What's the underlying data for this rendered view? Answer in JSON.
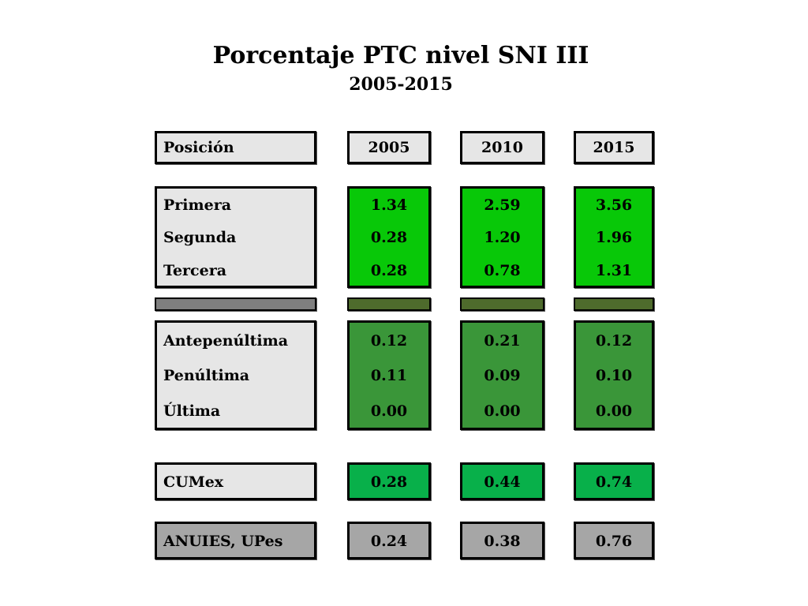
{
  "title": "Porcentaje PTC nivel SNI III",
  "subtitle": "2005-2015",
  "header": {
    "label": "Posición",
    "years": [
      "2005",
      "2010",
      "2015"
    ]
  },
  "chart_data": {
    "type": "table",
    "title": "Porcentaje PTC nivel SNI III",
    "subtitle": "2005-2015",
    "columns": [
      "2005",
      "2010",
      "2015"
    ],
    "groups": [
      {
        "id": "top",
        "rows": [
          {
            "label": "Primera",
            "values": [
              "1.34",
              "2.59",
              "3.56"
            ]
          },
          {
            "label": "Segunda",
            "values": [
              "0.28",
              "1.20",
              "1.96"
            ]
          },
          {
            "label": "Tercera",
            "values": [
              "0.28",
              "0.78",
              "1.31"
            ]
          }
        ]
      },
      {
        "id": "bottom",
        "rows": [
          {
            "label": "Antepenúltima",
            "values": [
              "0.12",
              "0.21",
              "0.12"
            ]
          },
          {
            "label": "Penúltima",
            "values": [
              "0.11",
              "0.09",
              "0.10"
            ]
          },
          {
            "label": "Última",
            "values": [
              "0.00",
              "0.00",
              "0.00"
            ]
          }
        ]
      },
      {
        "id": "cumex",
        "rows": [
          {
            "label": "CUMex",
            "values": [
              "0.28",
              "0.44",
              "0.74"
            ]
          }
        ]
      },
      {
        "id": "anuies",
        "rows": [
          {
            "label": "ANUIES, UPes",
            "values": [
              "0.24",
              "0.38",
              "0.76"
            ]
          }
        ]
      }
    ],
    "colors": {
      "label_box": "#e6e6e6",
      "top_values": "#08c808",
      "bottom_values": "#3a9639",
      "cumex_values": "#08b04a",
      "anuies_box": "#a6a6a6",
      "separator_label": "#7f7f7f",
      "separator_values": "#4e6b2c"
    }
  }
}
